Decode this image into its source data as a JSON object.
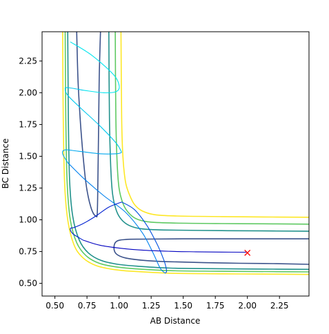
{
  "chart_data": {
    "type": "contour-line",
    "title": "",
    "xlabel": "AB Distance",
    "ylabel": "BC Distance",
    "xlim": [
      0.4,
      2.48
    ],
    "ylim": [
      0.4,
      2.48
    ],
    "xticks": [
      "0.50",
      "0.75",
      "1.00",
      "1.25",
      "1.50",
      "1.75",
      "2.00",
      "2.25"
    ],
    "yticks": [
      "0.50",
      "0.75",
      "1.00",
      "1.25",
      "1.50",
      "1.75",
      "2.00",
      "2.25"
    ],
    "grid": false,
    "legend": "none",
    "contours": [
      {
        "color": "#fde725",
        "x": [
          0.56,
          0.565,
          0.575,
          0.6,
          0.65,
          0.72,
          0.82,
          0.95,
          1.1,
          1.4,
          1.8,
          2.2,
          2.48
        ],
        "y": [
          2.48,
          1.8,
          1.3,
          1.0,
          0.8,
          0.7,
          0.64,
          0.61,
          0.595,
          0.58,
          0.575,
          0.572,
          0.57
        ]
      },
      {
        "color": "#fde725",
        "x": [
          1.015,
          1.02,
          1.03,
          1.05,
          1.08,
          1.12,
          1.18,
          1.28,
          1.45,
          1.8,
          2.2,
          2.48
        ],
        "y": [
          2.48,
          1.8,
          1.5,
          1.3,
          1.2,
          1.12,
          1.07,
          1.04,
          1.03,
          1.025,
          1.022,
          1.02
        ]
      },
      {
        "color": "#5ec962",
        "x": [
          0.58,
          0.585,
          0.595,
          0.62,
          0.67,
          0.74,
          0.84,
          0.97,
          1.12,
          1.4,
          1.8,
          2.2,
          2.48
        ],
        "y": [
          2.48,
          1.8,
          1.3,
          1.0,
          0.82,
          0.72,
          0.66,
          0.63,
          0.615,
          0.6,
          0.595,
          0.592,
          0.59
        ]
      },
      {
        "color": "#5ec962",
        "x": [
          0.97,
          0.975,
          0.985,
          1.0,
          1.03,
          1.07,
          1.13,
          1.22,
          1.4,
          1.8,
          2.2,
          2.48
        ],
        "y": [
          2.48,
          1.8,
          1.45,
          1.25,
          1.13,
          1.06,
          1.01,
          0.985,
          0.975,
          0.97,
          0.968,
          0.966
        ]
      },
      {
        "color": "#21918c",
        "x": [
          0.6,
          0.605,
          0.615,
          0.64,
          0.69,
          0.76,
          0.86,
          0.99,
          1.14,
          1.4,
          1.8,
          2.2,
          2.48
        ],
        "y": [
          2.48,
          1.8,
          1.3,
          1.02,
          0.84,
          0.74,
          0.68,
          0.65,
          0.635,
          0.62,
          0.615,
          0.612,
          0.61
        ]
      },
      {
        "color": "#21918c",
        "x": [
          0.92,
          0.925,
          0.935,
          0.95,
          0.98,
          1.02,
          1.08,
          1.17,
          1.35,
          1.8,
          2.2,
          2.48
        ],
        "y": [
          2.48,
          1.8,
          1.42,
          1.2,
          1.07,
          1.0,
          0.955,
          0.93,
          0.92,
          0.915,
          0.912,
          0.91
        ]
      },
      {
        "color": "#3b528b",
        "x": [
          0.67,
          0.68,
          0.7,
          0.72,
          0.74,
          0.76,
          0.78,
          0.8,
          0.82,
          0.83,
          0.835,
          0.84,
          0.845,
          0.85,
          0.855
        ],
        "y": [
          2.48,
          2.1,
          1.75,
          1.5,
          1.3,
          1.18,
          1.1,
          1.05,
          1.03,
          1.05,
          1.3,
          1.7,
          2.1,
          2.3,
          2.48
        ]
      },
      {
        "color": "#3b528b",
        "x": [
          2.48,
          2.2,
          1.8,
          1.4,
          1.2,
          1.05,
          0.98,
          0.96,
          0.98,
          1.05,
          1.2,
          1.5,
          1.9,
          2.3,
          2.48
        ],
        "y": [
          0.65,
          0.655,
          0.66,
          0.67,
          0.68,
          0.7,
          0.73,
          0.78,
          0.83,
          0.845,
          0.848,
          0.85,
          0.85,
          0.85,
          0.85
        ]
      }
    ],
    "trajectories": [
      {
        "color": "#00e5ee",
        "x": [
          0.62,
          0.78,
          0.95,
          1.0,
          0.98,
          0.88,
          0.72,
          0.6,
          0.58,
          0.6,
          0.7,
          0.85,
          0.98,
          1.02,
          0.98,
          0.85,
          0.68,
          0.58,
          0.56,
          0.6,
          0.72,
          0.88,
          1.05,
          1.18,
          1.26,
          1.32,
          1.36,
          1.37,
          1.35,
          1.3,
          1.22,
          1.12,
          1.02,
          0.92,
          0.82,
          0.72,
          0.65,
          0.62,
          0.64,
          0.72,
          0.85,
          1.02,
          1.2,
          1.4,
          1.6,
          1.8,
          2.0
        ],
        "y": [
          2.4,
          2.3,
          2.15,
          2.06,
          2.01,
          2.0,
          2.02,
          2.04,
          2.03,
          1.98,
          1.88,
          1.74,
          1.6,
          1.53,
          1.52,
          1.52,
          1.54,
          1.55,
          1.52,
          1.45,
          1.33,
          1.19,
          1.06,
          0.9,
          0.75,
          0.62,
          0.58,
          0.6,
          0.68,
          0.8,
          0.95,
          1.08,
          1.14,
          1.1,
          1.03,
          0.97,
          0.94,
          0.93,
          0.89,
          0.84,
          0.8,
          0.775,
          0.76,
          0.752,
          0.748,
          0.746,
          0.745
        ],
        "colors": [
          "#00e5ee",
          "#00c8ee",
          "#00a8ee",
          "#0080ee",
          "#0050e0",
          "#0020d0",
          "#0000c0"
        ]
      }
    ],
    "marker": {
      "x": 2.0,
      "y": 0.74,
      "symbol": "x",
      "color": "#ff0000"
    }
  }
}
